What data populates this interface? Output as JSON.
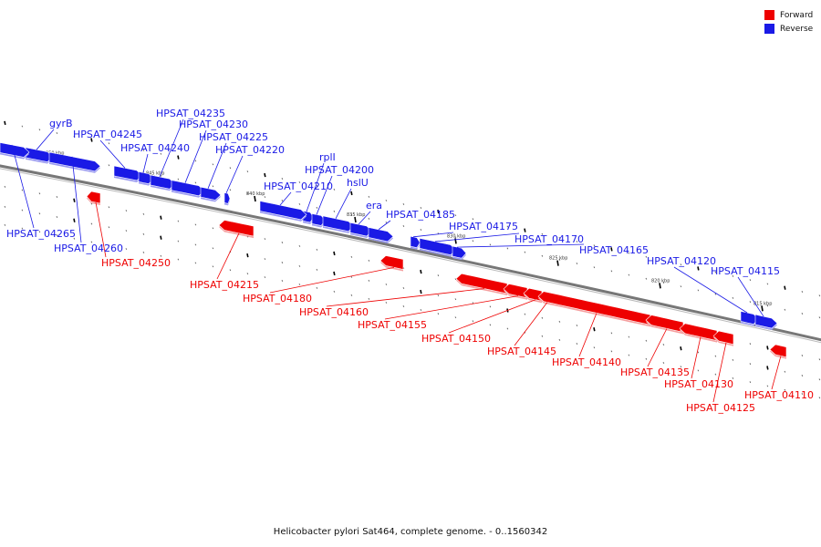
{
  "colors": {
    "forward": "#ee0000",
    "reverse": "#1a1ae6",
    "backbone": "#777777"
  },
  "legend": [
    {
      "label": "Forward",
      "color": "#ee0000"
    },
    {
      "label": "Reverse",
      "color": "#1a1ae6"
    }
  ],
  "caption": "Helicobacter pylori Sat464, complete genome. - 0..1560342",
  "ticks": [
    {
      "label": "850 kbp"
    },
    {
      "label": "845 kbp"
    },
    {
      "label": "840 kbp"
    },
    {
      "label": "835 kbp"
    },
    {
      "label": "830 kbp"
    },
    {
      "label": "825 kbp"
    },
    {
      "label": "820 kbp"
    },
    {
      "label": "815 kbp"
    }
  ],
  "genes": [
    {
      "name": "gyrB",
      "strand": "reverse"
    },
    {
      "name": "HPSAT_04245",
      "strand": "reverse"
    },
    {
      "name": "HPSAT_04240",
      "strand": "reverse"
    },
    {
      "name": "HPSAT_04235",
      "strand": "reverse"
    },
    {
      "name": "HPSAT_04230",
      "strand": "reverse"
    },
    {
      "name": "HPSAT_04225",
      "strand": "reverse"
    },
    {
      "name": "HPSAT_04220",
      "strand": "reverse"
    },
    {
      "name": "rplI",
      "strand": "reverse"
    },
    {
      "name": "HPSAT_04200",
      "strand": "reverse"
    },
    {
      "name": "HPSAT_04210",
      "strand": "reverse"
    },
    {
      "name": "hslU",
      "strand": "reverse"
    },
    {
      "name": "era",
      "strand": "reverse"
    },
    {
      "name": "HPSAT_04185",
      "strand": "reverse"
    },
    {
      "name": "HPSAT_04175",
      "strand": "reverse"
    },
    {
      "name": "HPSAT_04170",
      "strand": "reverse"
    },
    {
      "name": "HPSAT_04165",
      "strand": "reverse"
    },
    {
      "name": "HPSAT_04120",
      "strand": "reverse"
    },
    {
      "name": "HPSAT_04115",
      "strand": "reverse"
    },
    {
      "name": "HPSAT_04265",
      "strand": "reverse"
    },
    {
      "name": "HPSAT_04260",
      "strand": "reverse"
    },
    {
      "name": "HPSAT_04250",
      "strand": "forward"
    },
    {
      "name": "HPSAT_04215",
      "strand": "forward"
    },
    {
      "name": "HPSAT_04180",
      "strand": "forward"
    },
    {
      "name": "HPSAT_04160",
      "strand": "forward"
    },
    {
      "name": "HPSAT_04155",
      "strand": "forward"
    },
    {
      "name": "HPSAT_04150",
      "strand": "forward"
    },
    {
      "name": "HPSAT_04145",
      "strand": "forward"
    },
    {
      "name": "HPSAT_04140",
      "strand": "forward"
    },
    {
      "name": "HPSAT_04135",
      "strand": "forward"
    },
    {
      "name": "HPSAT_04130",
      "strand": "forward"
    },
    {
      "name": "HPSAT_04125",
      "strand": "forward"
    },
    {
      "name": "HPSAT_04110",
      "strand": "forward"
    }
  ]
}
